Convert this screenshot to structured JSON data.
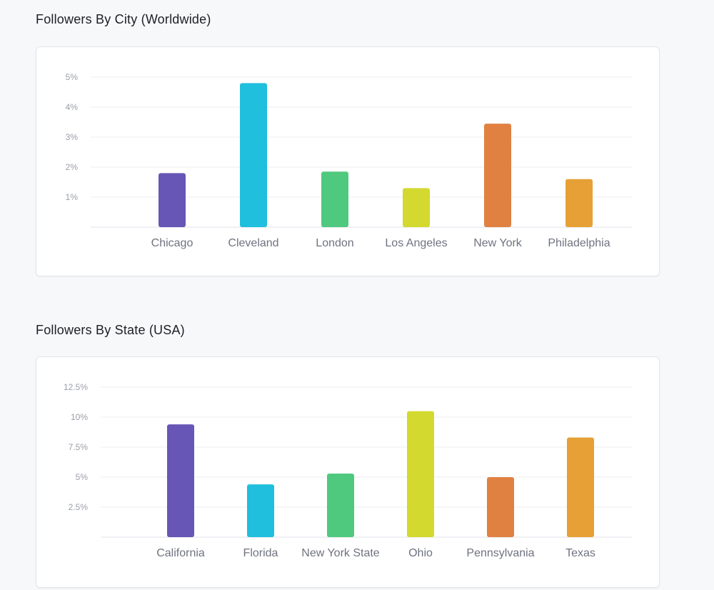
{
  "charts": [
    {
      "section_title": "Followers By City (Worldwide)",
      "chart_data": {
        "type": "bar",
        "title": "Followers By City (Worldwide)",
        "categories": [
          "Chicago",
          "Cleveland",
          "London",
          "Los Angeles",
          "New York",
          "Philadelphia"
        ],
        "values": [
          1.8,
          4.8,
          1.85,
          1.3,
          3.45,
          1.6
        ],
        "colors": [
          "#6756b5",
          "#1fbfdd",
          "#4fc97e",
          "#d3d92f",
          "#e08142",
          "#e6a035"
        ],
        "ylim": [
          0,
          5
        ],
        "yticks": [
          1,
          2,
          3,
          4,
          5
        ],
        "ytick_labels": [
          "1%",
          "2%",
          "3%",
          "4%",
          "5%"
        ],
        "unit": "%",
        "xlabel": "",
        "ylabel": "",
        "grid": true,
        "legend": "none"
      }
    },
    {
      "section_title": "Followers By State (USA)",
      "chart_data": {
        "type": "bar",
        "title": "Followers By State (USA)",
        "categories": [
          "California",
          "Florida",
          "New York State",
          "Ohio",
          "Pennsylvania",
          "Texas"
        ],
        "values": [
          9.4,
          4.4,
          5.3,
          10.5,
          5.0,
          8.3
        ],
        "colors": [
          "#6756b5",
          "#1fbfdd",
          "#4fc97e",
          "#d3d92f",
          "#e08142",
          "#e6a035"
        ],
        "ylim": [
          0,
          12.5
        ],
        "yticks": [
          2.5,
          5,
          7.5,
          10,
          12.5
        ],
        "ytick_labels": [
          "2.5%",
          "5%",
          "7.5%",
          "10%",
          "12.5%"
        ],
        "unit": "%",
        "xlabel": "",
        "ylabel": "",
        "grid": true,
        "legend": "none"
      }
    }
  ]
}
